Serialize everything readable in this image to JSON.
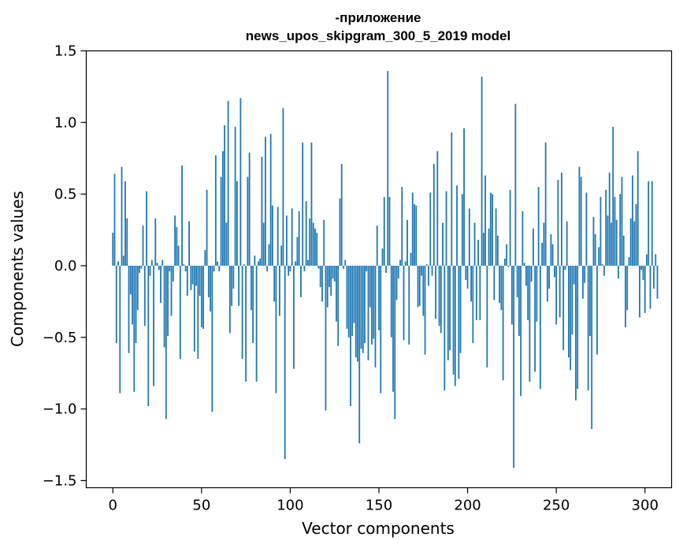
{
  "chart_data": {
    "type": "bar",
    "title_line1": "-приложение",
    "title_line2": "news_upos_skipgram_300_5_2019 model",
    "xlabel": "Vector components",
    "ylabel": "Components values",
    "xlim": [
      -15,
      315
    ],
    "ylim": [
      -1.55,
      1.5
    ],
    "xticks": [
      0,
      50,
      100,
      150,
      200,
      250,
      300
    ],
    "xtick_labels": [
      "0",
      "50",
      "100",
      "150",
      "200",
      "250",
      "300"
    ],
    "yticks": [
      -1.5,
      -1.0,
      -0.5,
      0.0,
      0.5,
      1.0,
      1.5
    ],
    "ytick_labels": [
      "−1.5",
      "−1.0",
      "−0.5",
      "0.0",
      "0.5",
      "1.0",
      "1.5"
    ],
    "grid": false,
    "bar_color": "#1f77b4",
    "values": [
      0.23,
      0.64,
      -0.54,
      0.03,
      -0.89,
      0.69,
      0.07,
      0.59,
      0.33,
      -0.61,
      -0.2,
      -0.41,
      -0.88,
      -0.54,
      -0.31,
      -0.05,
      -0.02,
      0.28,
      -0.42,
      0.52,
      -0.98,
      -0.07,
      0.04,
      -0.84,
      0.33,
      0.02,
      -0.03,
      -0.26,
      0.04,
      -0.57,
      -1.07,
      -0.49,
      -0.04,
      -0.35,
      -0.11,
      0.35,
      0.27,
      0.14,
      -0.65,
      0.7,
      0.01,
      -0.04,
      -0.21,
      0.31,
      -0.17,
      -0.13,
      -0.6,
      -0.14,
      -0.65,
      -0.21,
      -0.43,
      -0.44,
      0.11,
      0.53,
      -0.22,
      -0.32,
      -1.02,
      -0.04,
      0.77,
      0.03,
      -0.04,
      0.62,
      0.8,
      0.98,
      0.3,
      1.15,
      -0.47,
      -0.28,
      -0.16,
      0.97,
      0.59,
      -0.28,
      1.17,
      -0.65,
      0.01,
      -0.81,
      0.62,
      0.79,
      -0.31,
      -0.54,
      0.07,
      -0.81,
      0.03,
      0.05,
      0.76,
      0.3,
      0.9,
      -0.04,
      0.15,
      0.92,
      0.42,
      -0.25,
      -0.89,
      0.41,
      -0.35,
      0.14,
      1.1,
      -1.35,
      0.35,
      -0.07,
      -0.04,
      0.4,
      -0.72,
      0.03,
      0.2,
      0.38,
      -0.22,
      0.86,
      -0.04,
      0.45,
      0.04,
      0.33,
      0.86,
      0.3,
      0.26,
      0.23,
      -0.02,
      -0.15,
      -0.25,
      0.32,
      -1.01,
      -0.29,
      -0.15,
      -0.21,
      -0.09,
      -0.11,
      -0.39,
      -0.56,
      0.47,
      0.71,
      -0.02,
      0.04,
      -0.44,
      -0.5,
      -0.98,
      -0.49,
      -0.4,
      -0.64,
      -0.67,
      -1.24,
      -0.58,
      -0.61,
      -0.54,
      -0.04,
      -0.66,
      -0.29,
      -0.55,
      -0.51,
      -0.71,
      0.28,
      -0.45,
      -0.89,
      0.12,
      0.48,
      -0.05,
      1.36,
      0.48,
      -0.5,
      -0.88,
      -1.07,
      -0.24,
      -0.09,
      0.04,
      0.55,
      -0.52,
      0.03,
      0.32,
      -0.55,
      0.09,
      0.51,
      0.43,
      0.42,
      -0.29,
      -0.28,
      -0.07,
      -0.35,
      -0.62,
      0.01,
      -0.14,
      0.51,
      -0.07,
      0.71,
      -0.37,
      0.8,
      -0.42,
      -0.47,
      0.3,
      -0.87,
      0.52,
      -0.66,
      -0.59,
      0.93,
      -0.76,
      -0.84,
      0.56,
      -0.79,
      -0.61,
      0.5,
      0.96,
      -0.1,
      -0.16,
      0.4,
      -0.25,
      -0.54,
      0.3,
      -0.38,
      0.18,
      -0.38,
      1.32,
      0.23,
      0.63,
      -0.71,
      0.26,
      0.51,
      0.5,
      -0.24,
      0.4,
      0.21,
      -0.26,
      -0.31,
      -0.8,
      0.05,
      0.15,
      -0.01,
      0.53,
      -0.41,
      -1.41,
      1.13,
      -0.22,
      -0.49,
      -0.91,
      0.38,
      0.02,
      -0.14,
      -0.38,
      -0.81,
      -0.11,
      0.26,
      -0.74,
      -0.39,
      0.55,
      -0.86,
      0.16,
      0.3,
      0.86,
      -0.25,
      -0.16,
      0.22,
      0.15,
      -0.08,
      -0.41,
      0.6,
      -0.36,
      0.65,
      -0.59,
      -0.03,
      0.31,
      -0.64,
      -0.73,
      -0.48,
      -0.13,
      -0.94,
      -0.86,
      0.69,
      0.62,
      -0.23,
      -0.12,
      0.51,
      -0.87,
      -0.49,
      -1.14,
      0.34,
      0.22,
      -0.62,
      0.13,
      0.48,
      0.01,
      -0.07,
      0.53,
      0.35,
      0.65,
      0.3,
      0.97,
      0.48,
      0.32,
      -0.09,
      0.5,
      0.62,
      0.21,
      -0.43,
      -0.31,
      0.06,
      0.33,
      0.63,
      0.31,
      0.43,
      0.8,
      -0.36,
      -0.03,
      -0.1,
      -0.33,
      0.08,
      0.59,
      -0.3,
      0.59,
      -0.16,
      0.08,
      -0.23
    ]
  }
}
